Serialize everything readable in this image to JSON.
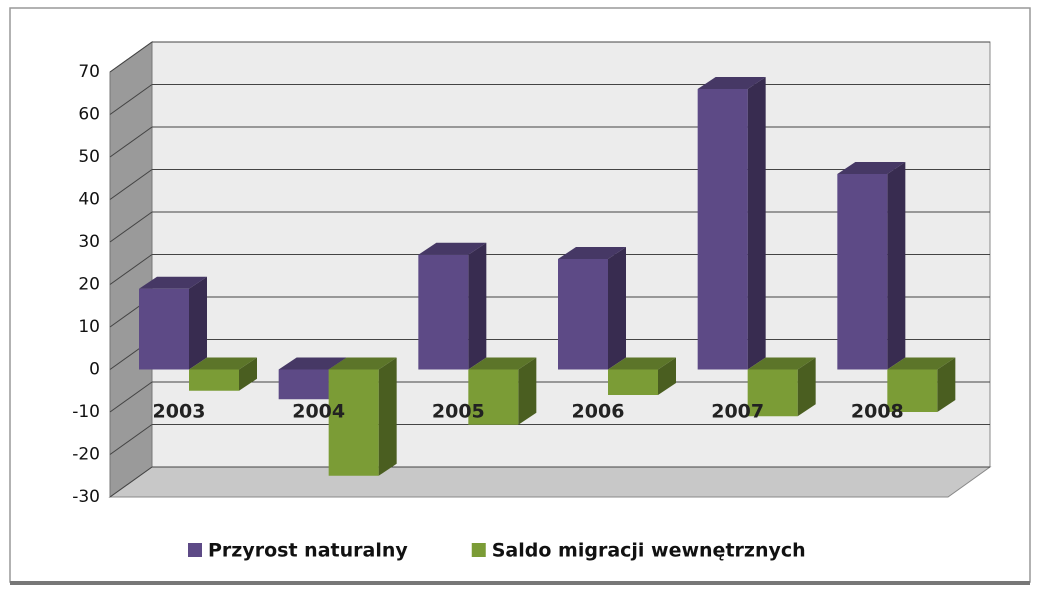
{
  "chart_data": {
    "type": "bar3d",
    "categories": [
      "2003",
      "2004",
      "2005",
      "2006",
      "2007",
      "2008"
    ],
    "series": [
      {
        "name": "Przyrost naturalny",
        "color": "#5d4a86",
        "values": [
          19,
          -7,
          27,
          26,
          66,
          46
        ]
      },
      {
        "name": "Saldo migracji wewnętrznych",
        "color": "#7b9c36",
        "values": [
          -5,
          -25,
          -13,
          -6,
          -11,
          -10
        ]
      }
    ],
    "ylim": [
      -30,
      70
    ],
    "yticks": [
      -30,
      -20,
      -10,
      0,
      10,
      20,
      30,
      40,
      50,
      60,
      70
    ],
    "grid": true,
    "legend": "bottom"
  }
}
